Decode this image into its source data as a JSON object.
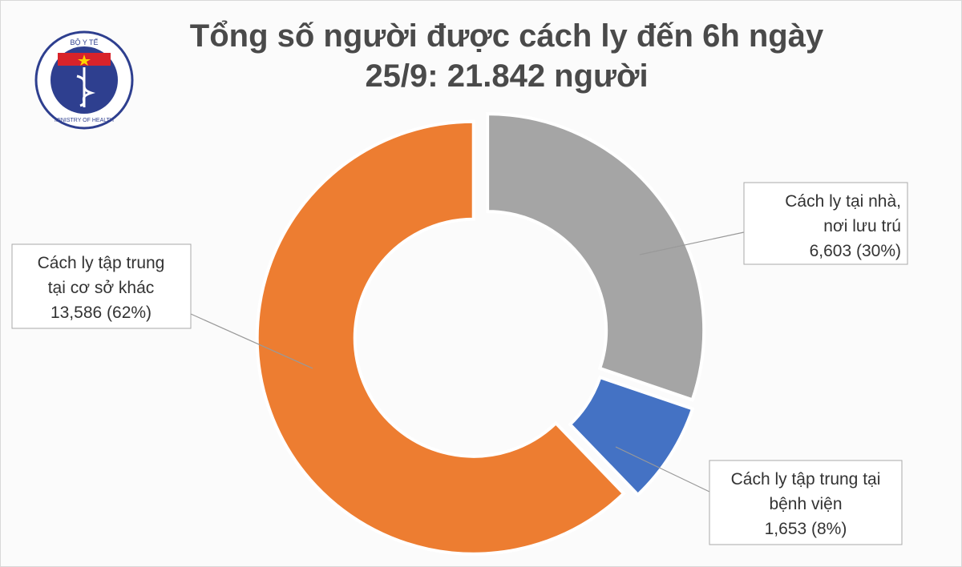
{
  "logo": {
    "top_text": "BỘ Y TẾ",
    "bottom_text": "MINISTRY OF HEALTH"
  },
  "chart_data": {
    "type": "donut",
    "title": [
      "Tổng số người được cách ly đến 6h ngày",
      "25/9: 21.842 người"
    ],
    "categories": [
      [
        "Cách ly tại nhà,",
        "nơi lưu trú"
      ],
      [
        "Cách ly tập trung tại",
        "bệnh viện"
      ],
      [
        "Cách ly tập trung",
        "tại cơ sở khác"
      ]
    ],
    "values": [
      6603,
      1653,
      13586
    ],
    "value_labels": [
      "6,603 (30%)",
      "1,653 (8%)",
      "13,586 (62%)"
    ],
    "colors": [
      "#a5a5a5",
      "#4472c4",
      "#ed7d31"
    ]
  }
}
